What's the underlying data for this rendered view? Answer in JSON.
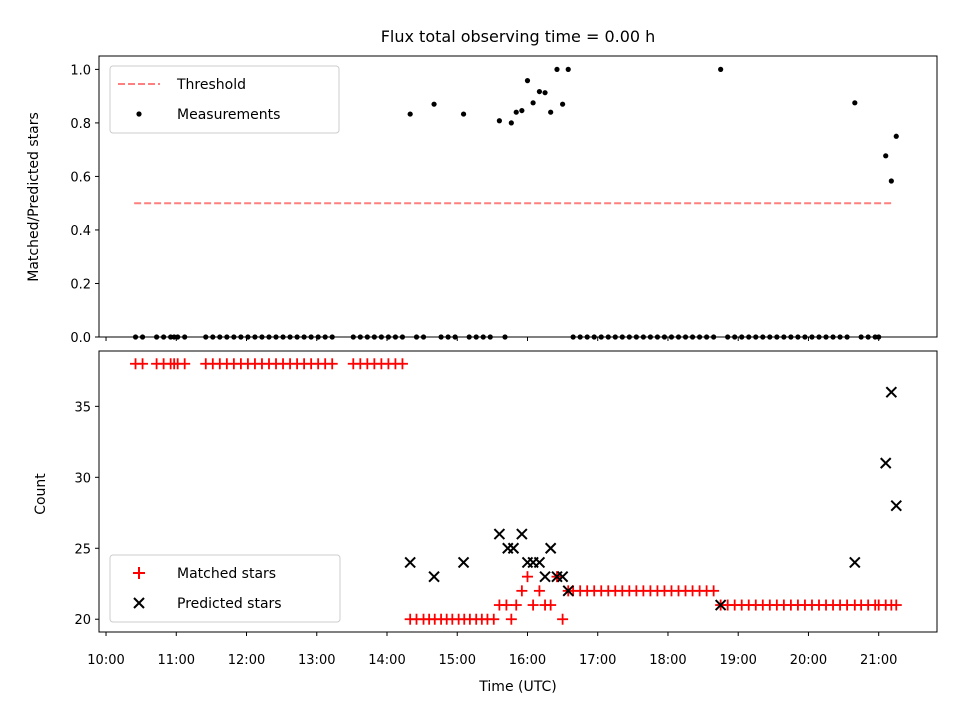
{
  "chart_data": [
    {
      "type": "scatter",
      "title": "Flux total observing time = 0.00 h",
      "xlabel": "",
      "ylabel": "Matched/Predicted stars",
      "xlim": [
        9.9,
        21.83
      ],
      "ylim": [
        0.0,
        1.05
      ],
      "xticks": [
        10,
        11,
        12,
        13,
        14,
        15,
        16,
        17,
        18,
        19,
        20,
        21
      ],
      "yticks": [
        0.0,
        0.2,
        0.4,
        0.6,
        0.8,
        1.0
      ],
      "ytick_labels": [
        "0.0",
        "0.2",
        "0.4",
        "0.6",
        "0.8",
        "1.0"
      ],
      "legend_position": "upper-left",
      "threshold": {
        "name": "Threshold",
        "value": 0.5,
        "x_range": [
          10.4,
          21.2
        ],
        "color": "#ff7f7f"
      },
      "series": [
        {
          "name": "Measurements",
          "color": "#000000",
          "marker": "dot",
          "points": [
            [
              10.42,
              0
            ],
            [
              10.52,
              0
            ],
            [
              10.72,
              0
            ],
            [
              10.82,
              0
            ],
            [
              10.92,
              0
            ],
            [
              10.97,
              0
            ],
            [
              11.02,
              0
            ],
            [
              11.12,
              0
            ],
            [
              11.42,
              0
            ],
            [
              11.52,
              0
            ],
            [
              11.62,
              0
            ],
            [
              11.72,
              0
            ],
            [
              11.82,
              0
            ],
            [
              11.92,
              0
            ],
            [
              12.02,
              0
            ],
            [
              12.12,
              0
            ],
            [
              12.22,
              0
            ],
            [
              12.32,
              0
            ],
            [
              12.42,
              0
            ],
            [
              12.52,
              0
            ],
            [
              12.62,
              0
            ],
            [
              12.72,
              0
            ],
            [
              12.82,
              0
            ],
            [
              12.92,
              0
            ],
            [
              13.02,
              0
            ],
            [
              13.12,
              0
            ],
            [
              13.22,
              0
            ],
            [
              13.52,
              0
            ],
            [
              13.62,
              0
            ],
            [
              13.72,
              0
            ],
            [
              13.82,
              0
            ],
            [
              13.92,
              0
            ],
            [
              14.02,
              0
            ],
            [
              14.12,
              0
            ],
            [
              14.22,
              0
            ],
            [
              14.33,
              0.833
            ],
            [
              14.42,
              0
            ],
            [
              14.52,
              0
            ],
            [
              14.67,
              0.87
            ],
            [
              14.77,
              0
            ],
            [
              14.87,
              0
            ],
            [
              14.97,
              0
            ],
            [
              15.09,
              0.833
            ],
            [
              15.17,
              0
            ],
            [
              15.27,
              0
            ],
            [
              15.37,
              0
            ],
            [
              15.47,
              0
            ],
            [
              15.6,
              0.808
            ],
            [
              15.68,
              0
            ],
            [
              15.77,
              0.8
            ],
            [
              15.84,
              0.84
            ],
            [
              15.92,
              0.846
            ],
            [
              16.0,
              0.958
            ],
            [
              16.08,
              0.875
            ],
            [
              16.17,
              0.917
            ],
            [
              16.25,
              0.913
            ],
            [
              16.33,
              0.84
            ],
            [
              16.42,
              1.0
            ],
            [
              16.5,
              0.87
            ],
            [
              16.58,
              1.0
            ],
            [
              16.65,
              0
            ],
            [
              16.75,
              0
            ],
            [
              16.85,
              0
            ],
            [
              16.95,
              0
            ],
            [
              17.05,
              0
            ],
            [
              17.15,
              0
            ],
            [
              17.25,
              0
            ],
            [
              17.35,
              0
            ],
            [
              17.45,
              0
            ],
            [
              17.55,
              0
            ],
            [
              17.65,
              0
            ],
            [
              17.75,
              0
            ],
            [
              17.85,
              0
            ],
            [
              17.95,
              0
            ],
            [
              18.05,
              0
            ],
            [
              18.15,
              0
            ],
            [
              18.25,
              0
            ],
            [
              18.35,
              0
            ],
            [
              18.45,
              0
            ],
            [
              18.55,
              0
            ],
            [
              18.65,
              0
            ],
            [
              18.75,
              1.0
            ],
            [
              18.85,
              0
            ],
            [
              18.95,
              0
            ],
            [
              19.05,
              0
            ],
            [
              19.15,
              0
            ],
            [
              19.25,
              0
            ],
            [
              19.35,
              0
            ],
            [
              19.45,
              0
            ],
            [
              19.55,
              0
            ],
            [
              19.65,
              0
            ],
            [
              19.75,
              0
            ],
            [
              19.85,
              0
            ],
            [
              19.95,
              0
            ],
            [
              20.05,
              0
            ],
            [
              20.15,
              0
            ],
            [
              20.25,
              0
            ],
            [
              20.35,
              0
            ],
            [
              20.45,
              0
            ],
            [
              20.55,
              0
            ],
            [
              20.66,
              0.875
            ],
            [
              20.75,
              0
            ],
            [
              20.85,
              0
            ],
            [
              20.95,
              0
            ],
            [
              21.0,
              0
            ],
            [
              21.1,
              0.677
            ],
            [
              21.18,
              0.583
            ],
            [
              21.25,
              0.75
            ]
          ]
        }
      ]
    },
    {
      "type": "scatter",
      "title": "",
      "xlabel": "Time (UTC)",
      "ylabel": "Count",
      "xlim": [
        9.9,
        21.83
      ],
      "ylim": [
        19.1,
        38.9
      ],
      "xticks": [
        10,
        11,
        12,
        13,
        14,
        15,
        16,
        17,
        18,
        19,
        20,
        21
      ],
      "xtick_labels": [
        "10:00",
        "11:00",
        "12:00",
        "13:00",
        "14:00",
        "15:00",
        "16:00",
        "17:00",
        "18:00",
        "19:00",
        "20:00",
        "21:00"
      ],
      "yticks": [
        20,
        25,
        30,
        35
      ],
      "ytick_labels": [
        "20",
        "25",
        "30",
        "35"
      ],
      "legend_position": "lower-left",
      "series": [
        {
          "name": "Matched stars",
          "color": "#ff0000",
          "marker": "plus",
          "points": [
            [
              10.42,
              38
            ],
            [
              10.52,
              38
            ],
            [
              10.72,
              38
            ],
            [
              10.82,
              38
            ],
            [
              10.92,
              38
            ],
            [
              10.97,
              38
            ],
            [
              11.02,
              38
            ],
            [
              11.12,
              38
            ],
            [
              11.42,
              38
            ],
            [
              11.52,
              38
            ],
            [
              11.62,
              38
            ],
            [
              11.72,
              38
            ],
            [
              11.82,
              38
            ],
            [
              11.92,
              38
            ],
            [
              12.02,
              38
            ],
            [
              12.12,
              38
            ],
            [
              12.22,
              38
            ],
            [
              12.32,
              38
            ],
            [
              12.42,
              38
            ],
            [
              12.52,
              38
            ],
            [
              12.62,
              38
            ],
            [
              12.72,
              38
            ],
            [
              12.82,
              38
            ],
            [
              12.92,
              38
            ],
            [
              13.02,
              38
            ],
            [
              13.12,
              38
            ],
            [
              13.22,
              38
            ],
            [
              13.52,
              38
            ],
            [
              13.62,
              38
            ],
            [
              13.72,
              38
            ],
            [
              13.82,
              38
            ],
            [
              13.92,
              38
            ],
            [
              14.02,
              38
            ],
            [
              14.12,
              38
            ],
            [
              14.22,
              38
            ],
            [
              14.33,
              20
            ],
            [
              14.42,
              20
            ],
            [
              14.52,
              20
            ],
            [
              14.6,
              20
            ],
            [
              14.68,
              20
            ],
            [
              14.77,
              20
            ],
            [
              14.85,
              20
            ],
            [
              14.93,
              20
            ],
            [
              15.02,
              20
            ],
            [
              15.1,
              20
            ],
            [
              15.18,
              20
            ],
            [
              15.27,
              20
            ],
            [
              15.35,
              20
            ],
            [
              15.43,
              20
            ],
            [
              15.52,
              20
            ],
            [
              15.6,
              21
            ],
            [
              15.7,
              21
            ],
            [
              15.77,
              20
            ],
            [
              15.84,
              21
            ],
            [
              15.92,
              22
            ],
            [
              16.0,
              23
            ],
            [
              16.08,
              21
            ],
            [
              16.17,
              22
            ],
            [
              16.25,
              21
            ],
            [
              16.33,
              21
            ],
            [
              16.42,
              23
            ],
            [
              16.5,
              20
            ],
            [
              16.58,
              22
            ],
            [
              16.65,
              22
            ],
            [
              16.75,
              22
            ],
            [
              16.85,
              22
            ],
            [
              16.95,
              22
            ],
            [
              17.05,
              22
            ],
            [
              17.15,
              22
            ],
            [
              17.25,
              22
            ],
            [
              17.35,
              22
            ],
            [
              17.45,
              22
            ],
            [
              17.55,
              22
            ],
            [
              17.65,
              22
            ],
            [
              17.75,
              22
            ],
            [
              17.85,
              22
            ],
            [
              17.95,
              22
            ],
            [
              18.05,
              22
            ],
            [
              18.15,
              22
            ],
            [
              18.25,
              22
            ],
            [
              18.35,
              22
            ],
            [
              18.45,
              22
            ],
            [
              18.55,
              22
            ],
            [
              18.65,
              22
            ],
            [
              18.75,
              21
            ],
            [
              18.85,
              21
            ],
            [
              18.95,
              21
            ],
            [
              19.05,
              21
            ],
            [
              19.15,
              21
            ],
            [
              19.25,
              21
            ],
            [
              19.35,
              21
            ],
            [
              19.45,
              21
            ],
            [
              19.55,
              21
            ],
            [
              19.65,
              21
            ],
            [
              19.75,
              21
            ],
            [
              19.85,
              21
            ],
            [
              19.95,
              21
            ],
            [
              20.05,
              21
            ],
            [
              20.15,
              21
            ],
            [
              20.25,
              21
            ],
            [
              20.35,
              21
            ],
            [
              20.45,
              21
            ],
            [
              20.55,
              21
            ],
            [
              20.66,
              21
            ],
            [
              20.75,
              21
            ],
            [
              20.85,
              21
            ],
            [
              20.95,
              21
            ],
            [
              21.0,
              21
            ],
            [
              21.1,
              21
            ],
            [
              21.18,
              21
            ],
            [
              21.25,
              21
            ]
          ]
        },
        {
          "name": "Predicted stars",
          "color": "#000000",
          "marker": "x",
          "points": [
            [
              14.33,
              24
            ],
            [
              14.67,
              23
            ],
            [
              15.09,
              24
            ],
            [
              15.6,
              26
            ],
            [
              15.72,
              25
            ],
            [
              15.8,
              25
            ],
            [
              15.92,
              26
            ],
            [
              16.0,
              24
            ],
            [
              16.08,
              24
            ],
            [
              16.17,
              24
            ],
            [
              16.25,
              23
            ],
            [
              16.33,
              25
            ],
            [
              16.42,
              23
            ],
            [
              16.5,
              23
            ],
            [
              16.58,
              22
            ],
            [
              18.75,
              21
            ],
            [
              20.66,
              24
            ],
            [
              21.1,
              31
            ],
            [
              21.18,
              36
            ],
            [
              21.25,
              28
            ]
          ]
        }
      ]
    }
  ]
}
